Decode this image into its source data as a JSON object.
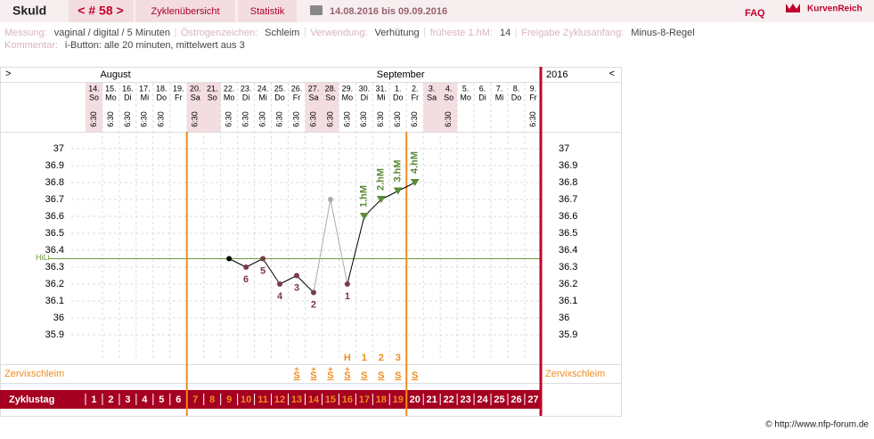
{
  "header": {
    "user": "Skuld",
    "cycle": "< # 58 >",
    "tabs": [
      "Zyklenübersicht",
      "Statistik"
    ],
    "period": "14.08.2016 bis 09.09.2016",
    "faq": "FAQ",
    "logo": "KurvenReich"
  },
  "meta": {
    "fields": [
      {
        "label": "Messung:",
        "value": "vaginal / digital / 5 Minuten"
      },
      {
        "label": "Östrogenzeichen:",
        "value": "Schleim"
      },
      {
        "label": "Verwendung:",
        "value": "Verhütung"
      },
      {
        "label": "früheste 1.hM:",
        "value": "14"
      },
      {
        "label": "Freigabe Zyklusanfang:",
        "value": "Minus-8-Regel"
      }
    ],
    "comment": {
      "label": "Kommentar:",
      "value": "i-Button: alle 20 minuten, mittelwert aus 3"
    }
  },
  "footer": "© http://www.nfp-forum.de",
  "chart_data": {
    "type": "line",
    "nav_left": ">",
    "nav_right": "<",
    "months": [
      "August",
      "September"
    ],
    "year": "2016",
    "categories": [
      "14.",
      "15.",
      "16.",
      "17.",
      "18.",
      "19.",
      "20.",
      "21.",
      "22.",
      "23.",
      "24.",
      "25.",
      "26.",
      "27.",
      "28.",
      "29.",
      "30.",
      "31.",
      "1.",
      "2.",
      "3.",
      "4.",
      "5.",
      "6.",
      "7.",
      "8.",
      "9."
    ],
    "weekdays": [
      "So",
      "Mo",
      "Di",
      "Mi",
      "Do",
      "Fr",
      "Sa",
      "So",
      "Mo",
      "Di",
      "Mi",
      "Do",
      "Fr",
      "Sa",
      "So",
      "Mo",
      "Di",
      "Mi",
      "Do",
      "Fr",
      "Sa",
      "So",
      "Mo",
      "Di",
      "Mi",
      "Do",
      "Fr"
    ],
    "times": [
      "6:30",
      "6:30",
      "6:30",
      "6:30",
      "6:30",
      null,
      "6:30",
      null,
      "6:30",
      "6:30",
      "6:30",
      "6:30",
      "6:30",
      "6:30",
      "6:30",
      "6:30",
      "6:30",
      "6:30",
      "6:30",
      "6:30",
      null,
      "6:30",
      null,
      null,
      null,
      null,
      "6:30"
    ],
    "values": [
      null,
      null,
      null,
      null,
      null,
      null,
      null,
      null,
      36.35,
      36.3,
      36.35,
      36.2,
      36.25,
      36.15,
      36.7,
      36.2,
      36.6,
      36.7,
      36.75,
      36.8,
      null,
      null,
      null,
      null,
      null,
      null,
      null
    ],
    "point_labels": [
      null,
      null,
      null,
      null,
      null,
      null,
      null,
      null,
      null,
      "6",
      "5",
      "4",
      "3",
      "2",
      null,
      "1",
      "1.hM",
      "2.hM",
      "3.hM",
      "4.hM",
      null,
      null,
      null,
      null,
      null,
      null,
      null
    ],
    "point_colors": [
      null,
      null,
      null,
      null,
      null,
      null,
      null,
      null,
      "#000000",
      "#7a3a4a",
      "#7a3a4a",
      "#7a3a4a",
      "#7a3a4a",
      "#7a3a4a",
      "#aaaaaa",
      "#7a3a4a",
      "#5a8a3a",
      "#5a8a3a",
      "#5a8a3a",
      "#5a8a3a",
      null,
      null,
      null,
      null,
      null,
      null,
      null
    ],
    "markers": [
      null,
      null,
      null,
      null,
      null,
      null,
      null,
      null,
      null,
      null,
      null,
      null,
      null,
      null,
      null,
      "H",
      "1",
      "2",
      "3",
      null,
      null,
      null,
      null,
      null,
      null,
      null,
      null
    ],
    "mucus_plus": [
      null,
      null,
      null,
      null,
      null,
      null,
      null,
      null,
      null,
      null,
      null,
      null,
      "+",
      "+",
      "+",
      "+",
      null,
      null,
      null,
      null,
      null,
      null,
      null,
      null,
      null,
      null,
      null
    ],
    "mucus": [
      null,
      null,
      null,
      null,
      null,
      null,
      null,
      null,
      null,
      null,
      null,
      null,
      "S",
      "S",
      "S",
      "S",
      "S",
      "S",
      "S",
      "S",
      null,
      null,
      null,
      null,
      null,
      null,
      null
    ],
    "mucus_label": "Zervixschleim",
    "cycle_label": "Zyklustag",
    "cycle_days": [
      1,
      2,
      3,
      4,
      5,
      6,
      7,
      8,
      9,
      10,
      11,
      12,
      13,
      14,
      15,
      16,
      17,
      18,
      19,
      20,
      21,
      22,
      23,
      24,
      25,
      26,
      27
    ],
    "cycle_day_colors": [
      "#ffffff",
      "#ffffff",
      "#ffffff",
      "#ffffff",
      "#ffffff",
      "#ffffff",
      "#f08c1e",
      "#f08c1e",
      "#f08c1e",
      "#f08c1e",
      "#f08c1e",
      "#f08c1e",
      "#f08c1e",
      "#f08c1e",
      "#f08c1e",
      "#f08c1e",
      "#f08c1e",
      "#f08c1e",
      "#f08c1e",
      "#ffffff",
      "#ffffff",
      "#ffffff",
      "#ffffff",
      "#ffffff",
      "#ffffff",
      "#ffffff",
      "#ffffff"
    ],
    "ylim": [
      35.75,
      37.1
    ],
    "yticks": [
      37,
      36.9,
      36.8,
      36.7,
      36.6,
      36.5,
      36.4,
      36.3,
      36.2,
      36.1,
      36,
      35.9
    ],
    "coverline": {
      "label": "HiLi",
      "value": 36.35,
      "color": "#6a9a3a"
    },
    "grid": true
  }
}
